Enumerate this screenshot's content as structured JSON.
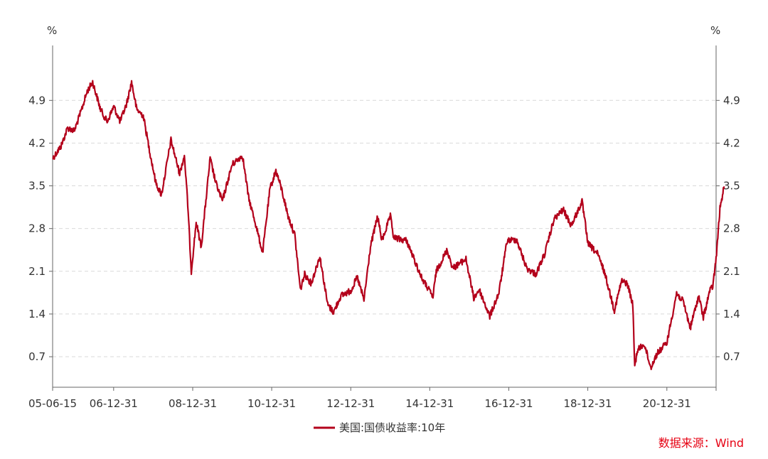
{
  "chart_data": {
    "type": "line",
    "y_unit_left": "%",
    "y_unit_right": "%",
    "ylim": [
      0.2,
      5.8
    ],
    "y_ticks": [
      0.7,
      1.4,
      2.1,
      2.8,
      3.5,
      4.2,
      4.9
    ],
    "y_tick_labels": [
      "0.7",
      "1.4",
      "2.1",
      "2.8",
      "3.5",
      "4.2",
      "4.9"
    ],
    "xlim": [
      "2005-06-15",
      "2022-03-31"
    ],
    "x_ticks": [
      "2005-06-15",
      "2006-12-31",
      "2008-12-31",
      "2010-12-31",
      "2012-12-31",
      "2014-12-31",
      "2016-12-31",
      "2018-12-31",
      "2020-12-31"
    ],
    "x_tick_labels": [
      "05-06-15",
      "06-12-31",
      "08-12-31",
      "10-12-31",
      "12-12-31",
      "14-12-31",
      "16-12-31",
      "18-12-31",
      "20-12-31"
    ],
    "grid": true,
    "legend_position": "bottom",
    "series_color": "#b3001b",
    "series": [
      {
        "name": "美国:国债收益率:10年",
        "points": [
          [
            "2005-06-15",
            3.95
          ],
          [
            "2005-09-01",
            4.15
          ],
          [
            "2005-11-01",
            4.45
          ],
          [
            "2006-01-01",
            4.4
          ],
          [
            "2006-03-01",
            4.7
          ],
          [
            "2006-05-01",
            5.05
          ],
          [
            "2006-06-20",
            5.2
          ],
          [
            "2006-09-01",
            4.75
          ],
          [
            "2006-11-01",
            4.55
          ],
          [
            "2007-01-01",
            4.8
          ],
          [
            "2007-03-01",
            4.55
          ],
          [
            "2007-05-01",
            4.85
          ],
          [
            "2007-06-15",
            5.2
          ],
          [
            "2007-08-01",
            4.75
          ],
          [
            "2007-10-01",
            4.65
          ],
          [
            "2007-12-01",
            4.05
          ],
          [
            "2008-01-25",
            3.55
          ],
          [
            "2008-03-17",
            3.35
          ],
          [
            "2008-06-13",
            4.25
          ],
          [
            "2008-09-01",
            3.7
          ],
          [
            "2008-10-15",
            4.0
          ],
          [
            "2008-11-15",
            3.2
          ],
          [
            "2008-12-18",
            2.1
          ],
          [
            "2009-02-01",
            2.9
          ],
          [
            "2009-03-20",
            2.5
          ],
          [
            "2009-06-10",
            3.95
          ],
          [
            "2009-08-01",
            3.55
          ],
          [
            "2009-10-01",
            3.25
          ],
          [
            "2009-12-31",
            3.85
          ],
          [
            "2010-04-05",
            4.0
          ],
          [
            "2010-06-01",
            3.3
          ],
          [
            "2010-08-01",
            2.9
          ],
          [
            "2010-10-08",
            2.4
          ],
          [
            "2010-12-15",
            3.45
          ],
          [
            "2011-02-08",
            3.75
          ],
          [
            "2011-04-01",
            3.45
          ],
          [
            "2011-06-01",
            3.0
          ],
          [
            "2011-08-01",
            2.7
          ],
          [
            "2011-09-22",
            1.8
          ],
          [
            "2011-11-01",
            2.05
          ],
          [
            "2012-01-01",
            1.9
          ],
          [
            "2012-03-20",
            2.35
          ],
          [
            "2012-06-01",
            1.55
          ],
          [
            "2012-07-25",
            1.43
          ],
          [
            "2012-10-01",
            1.7
          ],
          [
            "2012-12-31",
            1.78
          ],
          [
            "2013-03-01",
            2.0
          ],
          [
            "2013-05-02",
            1.63
          ],
          [
            "2013-07-01",
            2.5
          ],
          [
            "2013-09-05",
            3.0
          ],
          [
            "2013-10-15",
            2.6
          ],
          [
            "2014-01-01",
            3.0
          ],
          [
            "2014-02-01",
            2.65
          ],
          [
            "2014-06-01",
            2.6
          ],
          [
            "2014-10-15",
            2.0
          ],
          [
            "2015-01-30",
            1.68
          ],
          [
            "2015-03-01",
            2.1
          ],
          [
            "2015-06-10",
            2.45
          ],
          [
            "2015-08-01",
            2.15
          ],
          [
            "2015-12-01",
            2.3
          ],
          [
            "2016-02-11",
            1.66
          ],
          [
            "2016-04-01",
            1.8
          ],
          [
            "2016-07-08",
            1.36
          ],
          [
            "2016-10-01",
            1.75
          ],
          [
            "2016-12-15",
            2.6
          ],
          [
            "2017-03-13",
            2.62
          ],
          [
            "2017-06-14",
            2.15
          ],
          [
            "2017-09-07",
            2.05
          ],
          [
            "2017-12-01",
            2.4
          ],
          [
            "2018-02-21",
            2.95
          ],
          [
            "2018-05-17",
            3.11
          ],
          [
            "2018-08-01",
            2.85
          ],
          [
            "2018-11-08",
            3.24
          ],
          [
            "2019-01-03",
            2.55
          ],
          [
            "2019-03-29",
            2.39
          ],
          [
            "2019-06-01",
            2.1
          ],
          [
            "2019-09-03",
            1.46
          ],
          [
            "2019-11-08",
            1.94
          ],
          [
            "2020-01-01",
            1.9
          ],
          [
            "2020-02-20",
            1.55
          ],
          [
            "2020-03-09",
            0.54
          ],
          [
            "2020-04-01",
            0.8
          ],
          [
            "2020-06-05",
            0.91
          ],
          [
            "2020-08-04",
            0.52
          ],
          [
            "2020-10-01",
            0.75
          ],
          [
            "2020-12-31",
            0.93
          ],
          [
            "2021-03-31",
            1.74
          ],
          [
            "2021-06-01",
            1.6
          ],
          [
            "2021-08-04",
            1.17
          ],
          [
            "2021-10-21",
            1.7
          ],
          [
            "2021-12-03",
            1.34
          ],
          [
            "2022-01-31",
            1.78
          ],
          [
            "2022-02-28",
            1.85
          ],
          [
            "2022-03-31",
            2.3
          ],
          [
            "2022-05-06",
            3.13
          ],
          [
            "2022-06-14",
            3.49
          ]
        ]
      }
    ]
  },
  "source_label": "数据来源：Wind",
  "source_color": "#e60012"
}
